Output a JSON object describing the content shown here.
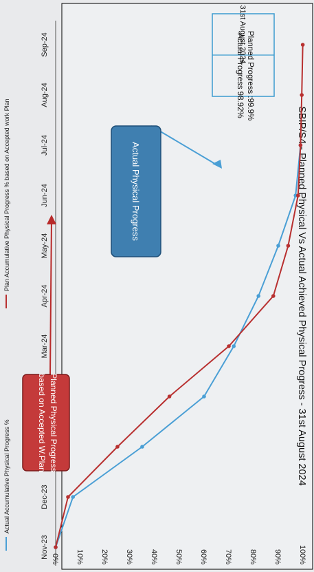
{
  "chart_data": {
    "type": "line",
    "title": "SBIP/S4 - Planned Physical Vs Actual Achieved Physical Progress - 31st August 2024",
    "categories": [
      "Nov-23",
      "Dec-23",
      "Jan-24",
      "Feb-24",
      "Mar-24",
      "Apr-24",
      "May-24",
      "Jun-24",
      "Jul-24",
      "Aug-24",
      "Sep-24"
    ],
    "ylim": [
      0,
      100
    ],
    "yticks": [
      "0%",
      "10%",
      "20%",
      "30%",
      "40%",
      "50%",
      "60%",
      "70%",
      "80%",
      "90%",
      "100%"
    ],
    "x": [
      0,
      1,
      1.5,
      2,
      2.5,
      3,
      3.5,
      4,
      4.5,
      5,
      5.5,
      6,
      7,
      8,
      9,
      10
    ],
    "series": [
      {
        "name": "Actual Accumulative Physical Progress %",
        "color": "#4a9fd5",
        "x": [
          0,
          1,
          2,
          3,
          4,
          5,
          6,
          7,
          8
        ],
        "values": [
          0,
          7,
          35,
          60,
          72,
          82,
          90,
          97,
          99
        ]
      },
      {
        "name": "Plan Accumulative Physical Progress % based on Accepted work Plan",
        "color": "#b83030",
        "x": [
          0,
          1,
          2,
          3,
          4,
          5,
          6,
          7,
          8,
          9,
          10
        ],
        "values": [
          0,
          5,
          25,
          46,
          70,
          88,
          94,
          98,
          99,
          99.5,
          99.9
        ]
      }
    ],
    "annotations": {
      "date_box": "31st August 2024",
      "planned_text": "Planned Progress :99.9%",
      "actual_text": "Actual Progress 98.92%",
      "planned_callout": [
        "Planned Physical Progress",
        "based on Accepted W.Plan"
      ],
      "actual_callout": "Actual Physical Progress"
    },
    "legend_position": "bottom",
    "grid": false
  }
}
